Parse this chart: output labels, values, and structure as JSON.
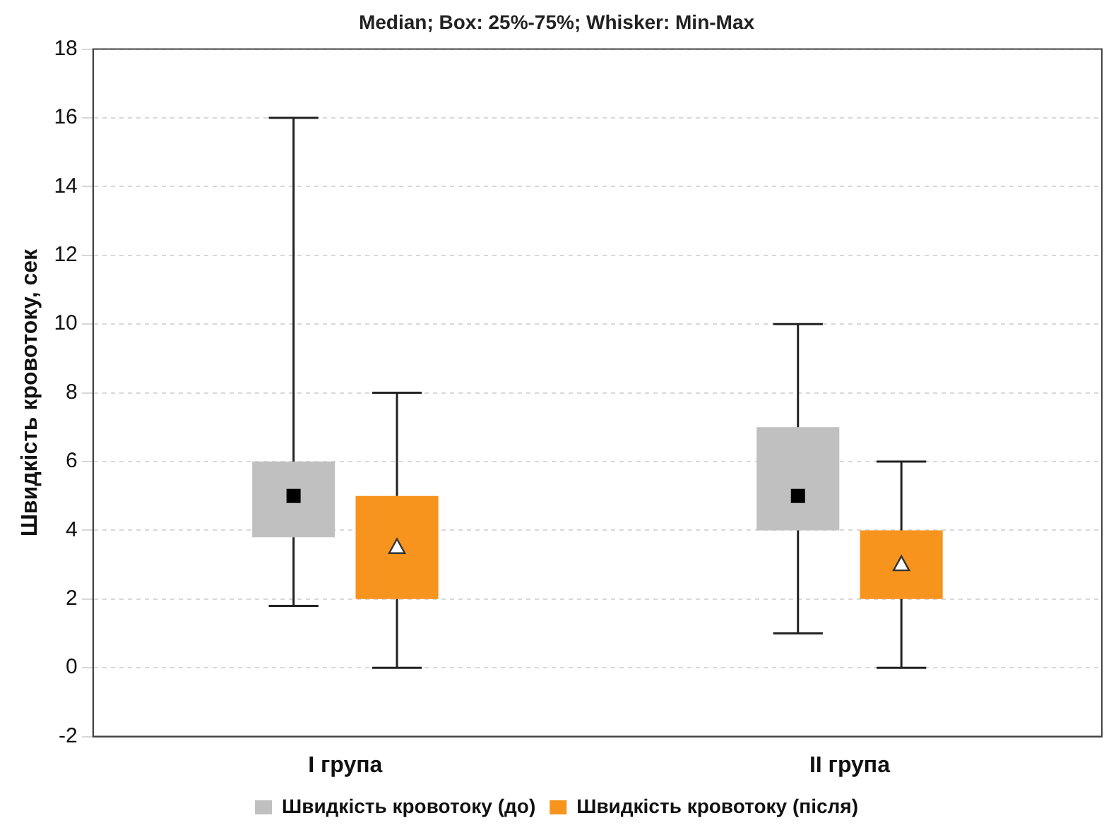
{
  "chart_data": {
    "type": "box",
    "title": "Median; Box: 25%-75%; Whisker: Min-Max",
    "ylabel": "Швидкість кровотоку, сек",
    "categories": [
      "I група",
      "II група"
    ],
    "series": [
      {
        "name": "Швидкість кровотоку (до)",
        "color": "#c0c0c0",
        "marker": "square",
        "boxes": [
          {
            "low": 1.8,
            "q1": 3.8,
            "median": 5,
            "q3": 6,
            "high": 16
          },
          {
            "low": 1,
            "q1": 4,
            "median": 5,
            "q3": 7,
            "high": 10
          }
        ]
      },
      {
        "name": "Швидкість кровотоку (після)",
        "color": "#f7941d",
        "marker": "triangle",
        "boxes": [
          {
            "low": 0,
            "q1": 2,
            "median": 3.5,
            "q3": 5,
            "high": 8
          },
          {
            "low": 0,
            "q1": 2,
            "median": 3,
            "q3": 4,
            "high": 6
          }
        ]
      }
    ],
    "ylim": [
      -2,
      18
    ],
    "yticks": [
      -2,
      0,
      2,
      4,
      6,
      8,
      10,
      12,
      14,
      16,
      18
    ],
    "grid": "y",
    "legend": "bottom"
  }
}
